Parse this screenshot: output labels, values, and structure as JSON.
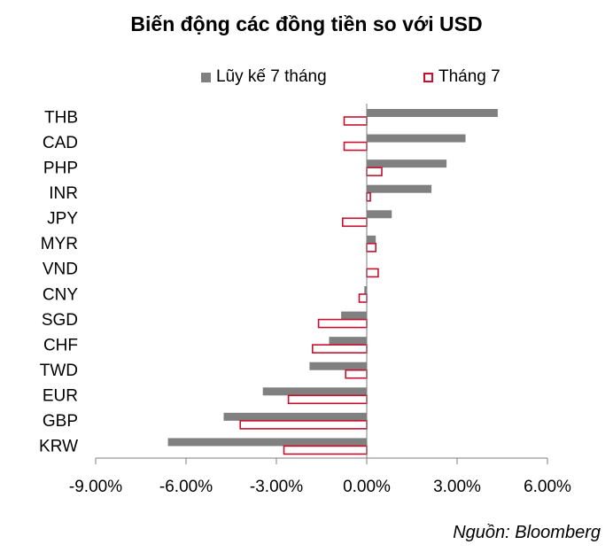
{
  "chart_data": {
    "type": "bar",
    "orientation": "horizontal",
    "title": "Biến động các đồng tiền so với USD",
    "categories": [
      "THB",
      "CAD",
      "PHP",
      "INR",
      "JPY",
      "MYR",
      "VND",
      "CNY",
      "SGD",
      "CHF",
      "TWD",
      "EUR",
      "GBP",
      "KRW"
    ],
    "series": [
      {
        "name": "Lũy kế 7 tháng",
        "color": "#808080",
        "fill": "solid",
        "values": [
          4.35,
          3.28,
          2.65,
          2.15,
          0.83,
          0.3,
          0.0,
          -0.08,
          -0.85,
          -1.25,
          -1.9,
          -3.45,
          -4.75,
          -6.6
        ]
      },
      {
        "name": "Tháng 7",
        "color": "#c8102e",
        "fill": "outline",
        "values": [
          -0.75,
          -0.75,
          0.5,
          0.12,
          -0.8,
          0.3,
          0.38,
          -0.25,
          -1.6,
          -1.8,
          -0.7,
          -2.6,
          -4.2,
          -2.75
        ]
      }
    ],
    "xlim": [
      -9,
      6
    ],
    "xticks": [
      -9,
      -6,
      -3,
      0,
      3,
      6
    ],
    "xtick_labels": [
      "-9.00%",
      "-6.00%",
      "-3.00%",
      "0.00%",
      "3.00%",
      "6.00%"
    ],
    "legend_position": "top",
    "grid": false
  },
  "source": "Nguồn: Bloomberg"
}
